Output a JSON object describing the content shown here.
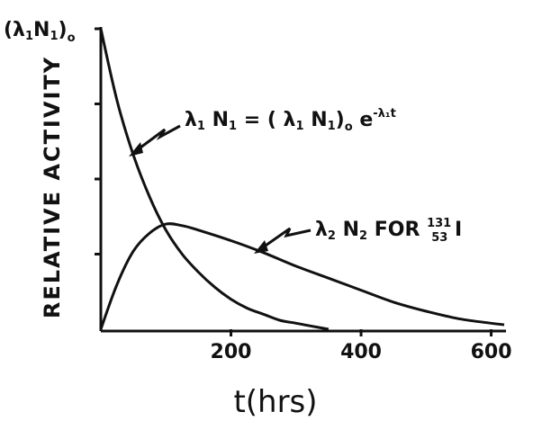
{
  "chart_data": {
    "type": "line",
    "title": "",
    "xlabel": "t(hrs)",
    "ylabel": "RELATIVE ACTIVITY",
    "y_top_label": "(λ1N1)o",
    "xlim": [
      0,
      620
    ],
    "ylim": [
      0,
      1
    ],
    "x_ticks": [
      200,
      400,
      600
    ],
    "x_tick_labels": [
      "200",
      "400",
      "600"
    ],
    "y_ticks": [
      0.25,
      0.5,
      0.75,
      1.0
    ],
    "grid": false,
    "series": [
      {
        "name": "λ1 N1 = (λ1N1)o e^-λ1t",
        "x": [
          0,
          25,
          50,
          75,
          100,
          125,
          150,
          175,
          200,
          225,
          250,
          275,
          300,
          325,
          350
        ],
        "values": [
          1.0,
          0.76,
          0.58,
          0.44,
          0.33,
          0.25,
          0.19,
          0.14,
          0.1,
          0.07,
          0.05,
          0.03,
          0.02,
          0.01,
          0.0
        ]
      },
      {
        "name": "λ2 N2 FOR 131 53 I",
        "x": [
          0,
          25,
          50,
          75,
          100,
          125,
          150,
          200,
          250,
          300,
          350,
          400,
          450,
          500,
          550,
          600,
          620
        ],
        "values": [
          0.0,
          0.15,
          0.26,
          0.32,
          0.35,
          0.345,
          0.33,
          0.295,
          0.255,
          0.21,
          0.17,
          0.13,
          0.09,
          0.06,
          0.035,
          0.02,
          0.015
        ]
      }
    ],
    "annotations": [
      {
        "text": "λ1 N1 = (λ1N1)o e^-λ1t",
        "target_series": 0
      },
      {
        "text": "λ2 N2 FOR 131 53 I",
        "target_series": 1
      }
    ]
  }
}
